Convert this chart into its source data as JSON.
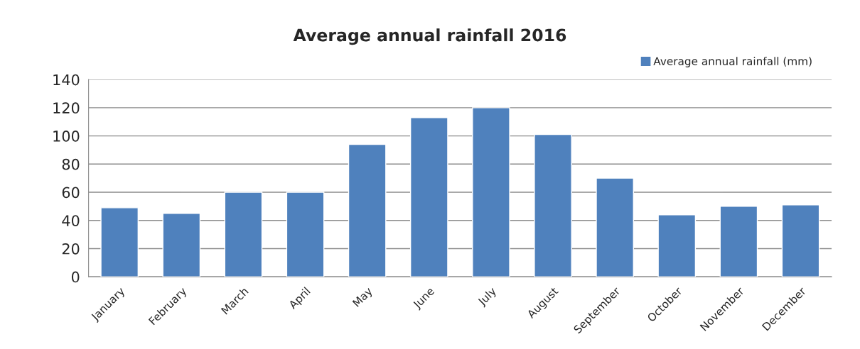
{
  "chart_data": {
    "type": "bar",
    "title": "Average annual rainfall 2016",
    "categories": [
      "January",
      "February",
      "March",
      "April",
      "May",
      "June",
      "July",
      "August",
      "September",
      "October",
      "November",
      "December"
    ],
    "series": [
      {
        "name": "Average annual rainfall (mm)",
        "color": "#4f81bd",
        "values": [
          49,
          45,
          60,
          60,
          94,
          113,
          120,
          101,
          70,
          44,
          50,
          51
        ]
      }
    ],
    "ylim": [
      0,
      140
    ],
    "yticks": [
      0,
      20,
      40,
      60,
      80,
      100,
      120,
      140
    ],
    "grid": "y",
    "legend": "top right"
  }
}
